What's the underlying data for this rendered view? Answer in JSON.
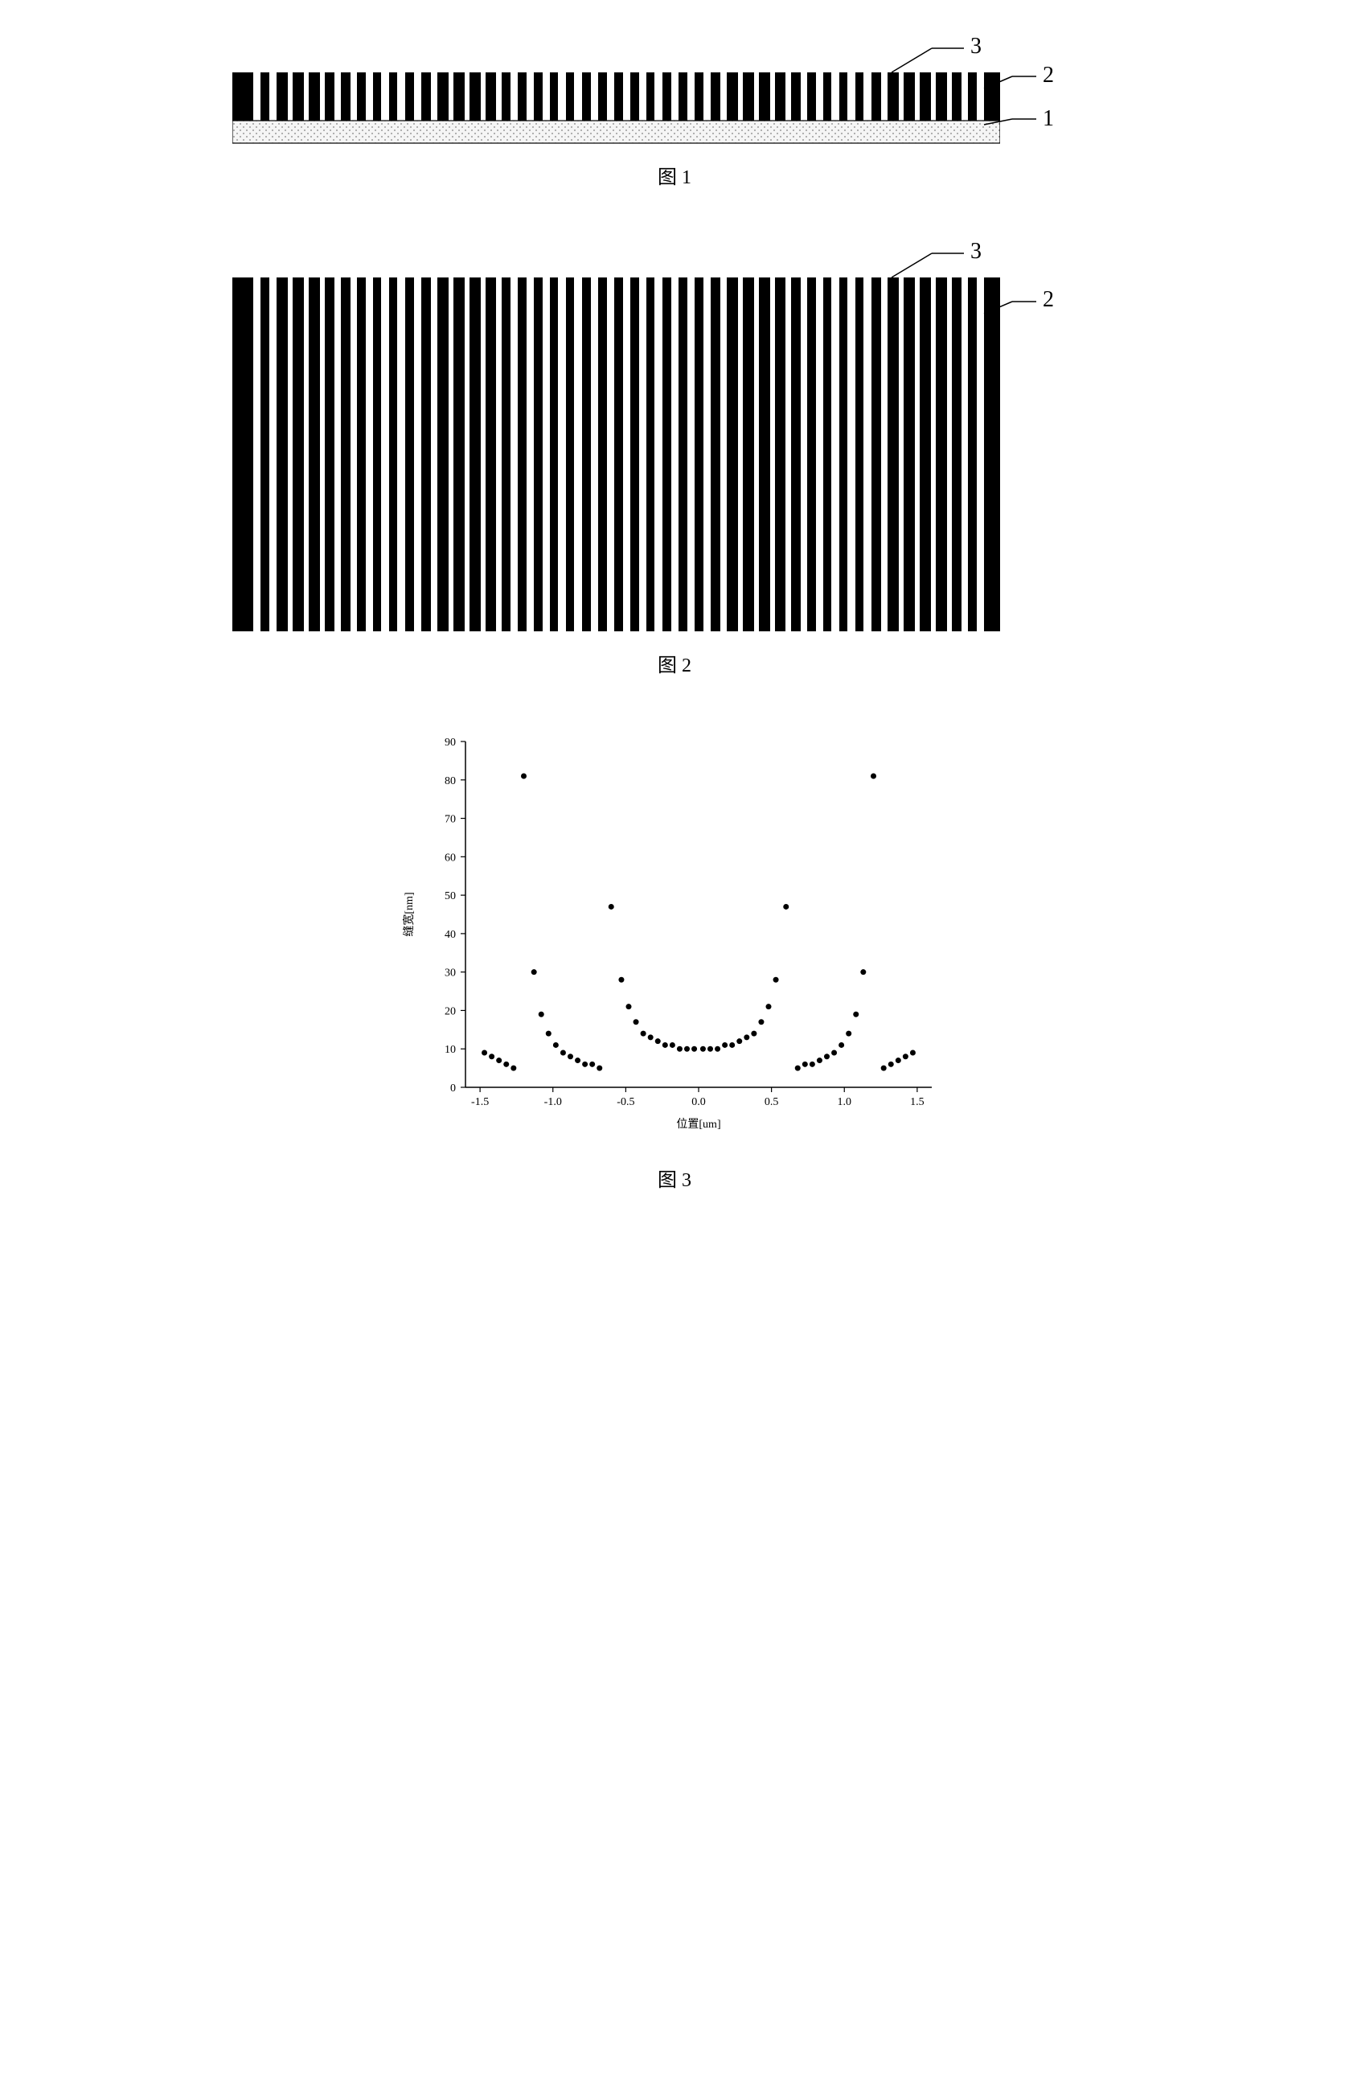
{
  "captions": {
    "fig1": "图 1",
    "fig2": "图 2",
    "fig3": "图 3"
  },
  "annotations": {
    "fig1": {
      "a": "3",
      "b": "2",
      "c": "1"
    },
    "fig2": {
      "a": "3",
      "b": "2"
    }
  },
  "grating": {
    "period": 20,
    "bar_count": 47,
    "bar_color": "#000000",
    "gap_color": "#ffffff",
    "height_fig1_bars": 60,
    "height_fig2_bars": 440,
    "substrate_height": 28,
    "substrate_fill": "#f5f5f5",
    "substrate_pattern_color": "#808080",
    "gaps": [
      9,
      9,
      6,
      6,
      6,
      8,
      8,
      9,
      10,
      10,
      9,
      8,
      6,
      6,
      6,
      7,
      9,
      9,
      9,
      10,
      10,
      9,
      9,
      9,
      9,
      10,
      9,
      9,
      9,
      8,
      6,
      6,
      6,
      7,
      8,
      9,
      10,
      10,
      10,
      8,
      6,
      6,
      6,
      6,
      8,
      9
    ]
  },
  "chart": {
    "type": "scatter",
    "xlabel": "位置[um]",
    "ylabel": "缝宽[nm]",
    "xlim": [
      -1.6,
      1.6
    ],
    "ylim": [
      0,
      90
    ],
    "xticks": [
      -1.5,
      -1.0,
      -0.5,
      0.0,
      0.5,
      1.0,
      1.5
    ],
    "yticks": [
      0,
      10,
      20,
      30,
      40,
      50,
      60,
      70,
      80,
      90
    ],
    "marker_size": 3.5,
    "marker_color": "#000000",
    "axis_color": "#000000",
    "tick_fontsize": 14,
    "label_fontsize": 14,
    "background_color": "#ffffff",
    "data": [
      [
        -1.47,
        9
      ],
      [
        -1.42,
        8
      ],
      [
        -1.37,
        7
      ],
      [
        -1.32,
        6
      ],
      [
        -1.27,
        5
      ],
      [
        -1.2,
        81
      ],
      [
        -1.13,
        30
      ],
      [
        -1.08,
        19
      ],
      [
        -1.03,
        14
      ],
      [
        -0.98,
        11
      ],
      [
        -0.93,
        9
      ],
      [
        -0.88,
        8
      ],
      [
        -0.83,
        7
      ],
      [
        -0.78,
        6
      ],
      [
        -0.73,
        6
      ],
      [
        -0.68,
        5
      ],
      [
        -0.6,
        47
      ],
      [
        -0.53,
        28
      ],
      [
        -0.48,
        21
      ],
      [
        -0.43,
        17
      ],
      [
        -0.38,
        14
      ],
      [
        -0.33,
        13
      ],
      [
        -0.28,
        12
      ],
      [
        -0.23,
        11
      ],
      [
        -0.18,
        11
      ],
      [
        -0.13,
        10
      ],
      [
        -0.08,
        10
      ],
      [
        -0.03,
        10
      ],
      [
        0.03,
        10
      ],
      [
        0.08,
        10
      ],
      [
        0.13,
        10
      ],
      [
        0.18,
        11
      ],
      [
        0.23,
        11
      ],
      [
        0.28,
        12
      ],
      [
        0.33,
        13
      ],
      [
        0.38,
        14
      ],
      [
        0.43,
        17
      ],
      [
        0.48,
        21
      ],
      [
        0.53,
        28
      ],
      [
        0.6,
        47
      ],
      [
        0.68,
        5
      ],
      [
        0.73,
        6
      ],
      [
        0.78,
        6
      ],
      [
        0.83,
        7
      ],
      [
        0.88,
        8
      ],
      [
        0.93,
        9
      ],
      [
        0.98,
        11
      ],
      [
        1.03,
        14
      ],
      [
        1.08,
        19
      ],
      [
        1.13,
        30
      ],
      [
        1.2,
        81
      ],
      [
        1.27,
        5
      ],
      [
        1.32,
        6
      ],
      [
        1.37,
        7
      ],
      [
        1.42,
        8
      ],
      [
        1.47,
        9
      ]
    ]
  }
}
